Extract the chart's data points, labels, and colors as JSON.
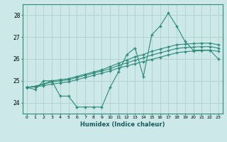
{
  "xlabel": "Humidex (Indice chaleur)",
  "x": [
    0,
    1,
    2,
    3,
    4,
    5,
    6,
    7,
    8,
    9,
    10,
    11,
    12,
    13,
    14,
    15,
    16,
    17,
    18,
    19,
    20,
    21,
    22,
    23
  ],
  "line1": [
    24.7,
    24.6,
    25.0,
    25.0,
    24.3,
    24.3,
    23.8,
    23.8,
    23.8,
    23.8,
    24.7,
    25.4,
    26.2,
    26.5,
    25.2,
    27.1,
    27.5,
    28.1,
    27.5,
    26.8,
    26.4,
    26.4,
    26.4,
    26.0
  ],
  "line2": [
    24.7,
    24.75,
    24.85,
    25.0,
    25.05,
    25.1,
    25.2,
    25.3,
    25.4,
    25.5,
    25.65,
    25.8,
    25.95,
    26.1,
    26.2,
    26.35,
    26.45,
    26.55,
    26.65,
    26.68,
    26.7,
    26.72,
    26.72,
    26.65
  ],
  "line3": [
    24.7,
    24.75,
    24.85,
    24.95,
    25.0,
    25.05,
    25.15,
    25.25,
    25.35,
    25.45,
    25.55,
    25.7,
    25.82,
    25.94,
    26.05,
    26.18,
    26.28,
    26.38,
    26.48,
    26.52,
    26.54,
    26.56,
    26.56,
    26.5
  ],
  "line4": [
    24.7,
    24.72,
    24.78,
    24.85,
    24.9,
    24.95,
    25.05,
    25.15,
    25.25,
    25.35,
    25.45,
    25.58,
    25.68,
    25.78,
    25.88,
    25.98,
    26.08,
    26.18,
    26.28,
    26.33,
    26.36,
    26.38,
    26.4,
    26.35
  ],
  "line_color": "#2e8b7a",
  "bg_color": "#cce8e8",
  "grid_color": "#aacccc",
  "ylim": [
    23.5,
    28.5
  ],
  "yticks": [
    24,
    25,
    26,
    27,
    28
  ]
}
